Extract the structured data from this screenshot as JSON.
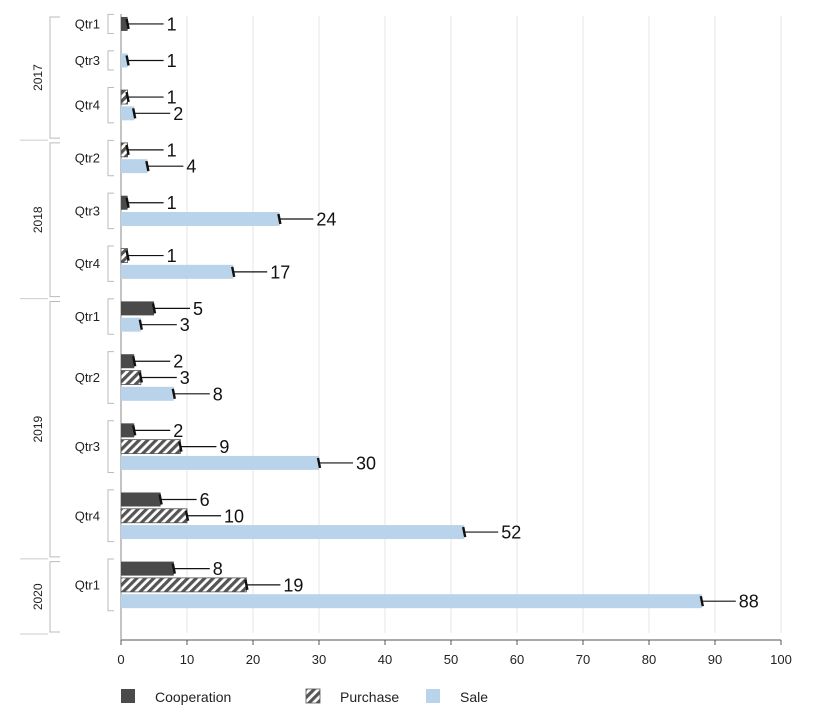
{
  "chart_data": {
    "type": "bar",
    "orientation": "horizontal",
    "xlim": [
      0,
      100
    ],
    "xticks": [
      0,
      10,
      20,
      30,
      40,
      50,
      60,
      70,
      80,
      90,
      100
    ],
    "grid": "vertical",
    "legend_position": "bottom-left",
    "colors": {
      "Cooperation": "#4a4a4a",
      "Purchase": "#5a5a5a",
      "Sale": "#b9d4ea",
      "error_bar": "#111111"
    },
    "legend": [
      "Cooperation",
      "Purchase",
      "Sale"
    ],
    "groups": [
      {
        "year": "2017",
        "quarters": [
          {
            "quarter": "Qtr1",
            "bars": [
              {
                "series": "Cooperation",
                "value": 1
              }
            ]
          },
          {
            "quarter": "Qtr3",
            "bars": [
              {
                "series": "Sale",
                "value": 1
              }
            ]
          },
          {
            "quarter": "Qtr4",
            "bars": [
              {
                "series": "Purchase",
                "value": 1
              },
              {
                "series": "Sale",
                "value": 2
              }
            ]
          }
        ]
      },
      {
        "year": "2018",
        "quarters": [
          {
            "quarter": "Qtr2",
            "bars": [
              {
                "series": "Purchase",
                "value": 1
              },
              {
                "series": "Sale",
                "value": 4
              }
            ]
          },
          {
            "quarter": "Qtr3",
            "bars": [
              {
                "series": "Cooperation",
                "value": 1
              },
              {
                "series": "Sale",
                "value": 24
              }
            ]
          },
          {
            "quarter": "Qtr4",
            "bars": [
              {
                "series": "Purchase",
                "value": 1
              },
              {
                "series": "Sale",
                "value": 17
              }
            ]
          }
        ]
      },
      {
        "year": "2019",
        "quarters": [
          {
            "quarter": "Qtr1",
            "bars": [
              {
                "series": "Cooperation",
                "value": 5
              },
              {
                "series": "Sale",
                "value": 3
              }
            ]
          },
          {
            "quarter": "Qtr2",
            "bars": [
              {
                "series": "Cooperation",
                "value": 2
              },
              {
                "series": "Purchase",
                "value": 3
              },
              {
                "series": "Sale",
                "value": 8
              }
            ]
          },
          {
            "quarter": "Qtr3",
            "bars": [
              {
                "series": "Cooperation",
                "value": 2
              },
              {
                "series": "Purchase",
                "value": 9
              },
              {
                "series": "Sale",
                "value": 30
              }
            ]
          },
          {
            "quarter": "Qtr4",
            "bars": [
              {
                "series": "Cooperation",
                "value": 6
              },
              {
                "series": "Purchase",
                "value": 10
              },
              {
                "series": "Sale",
                "value": 52
              }
            ]
          }
        ]
      },
      {
        "year": "2020",
        "quarters": [
          {
            "quarter": "Qtr1",
            "bars": [
              {
                "series": "Cooperation",
                "value": 8
              },
              {
                "series": "Purchase",
                "value": 19
              },
              {
                "series": "Sale",
                "value": 88
              }
            ]
          }
        ]
      }
    ]
  }
}
